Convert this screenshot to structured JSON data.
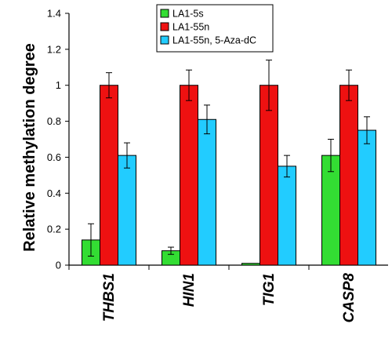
{
  "chart_data": {
    "type": "bar",
    "title": "",
    "xlabel": "",
    "ylabel": "Relative methylation degree",
    "ylim": [
      0,
      1.4
    ],
    "yticks": [
      "0",
      "0.2",
      "0.4",
      "0.6",
      "0.8",
      "1",
      "1.2",
      "1.4"
    ],
    "ytick_values": [
      0,
      0.2,
      0.4,
      0.6,
      0.8,
      1.0,
      1.2,
      1.4
    ],
    "categories": [
      "THBS1",
      "HIN1",
      "TIG1",
      "CASP8"
    ],
    "series": [
      {
        "name": "LA1-5s",
        "color": "#33dd33",
        "values": [
          0.14,
          0.08,
          0.01,
          0.61
        ],
        "errors": [
          0.09,
          0.02,
          0.0,
          0.09
        ]
      },
      {
        "name": "LA1-55n",
        "color": "#ee1111",
        "values": [
          1.0,
          1.0,
          1.0,
          1.0
        ],
        "errors": [
          0.07,
          0.085,
          0.14,
          0.085
        ]
      },
      {
        "name": "LA1-55n, 5-Aza-dC",
        "color": "#22ccff",
        "values": [
          0.61,
          0.81,
          0.55,
          0.75
        ],
        "errors": [
          0.07,
          0.08,
          0.06,
          0.075
        ]
      }
    ],
    "grid": false,
    "legend": "top-center"
  }
}
